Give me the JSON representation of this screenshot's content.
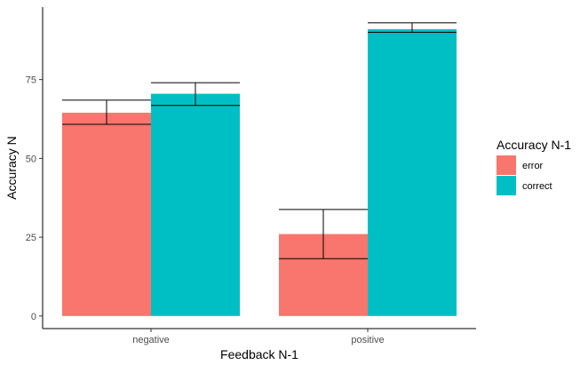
{
  "chart_data": {
    "type": "bar",
    "title": "",
    "xlabel": "Feedback N-1",
    "ylabel": "Accuracy N",
    "categories": [
      "negative",
      "positive"
    ],
    "ylim": [
      -4,
      98
    ],
    "yticks": [
      0,
      25,
      50,
      75
    ],
    "grid": false,
    "legend": {
      "title": "Accuracy N-1",
      "position": "right"
    },
    "series": [
      {
        "name": "error",
        "color": "#F8766D",
        "values": [
          64.5,
          26.0
        ],
        "err_low": [
          60.8,
          18.2
        ],
        "err_high": [
          68.5,
          33.8
        ]
      },
      {
        "name": "correct",
        "color": "#00BFC4",
        "values": [
          70.5,
          91.0
        ],
        "err_low": [
          66.8,
          90.0
        ],
        "err_high": [
          74.0,
          93.0
        ]
      }
    ]
  }
}
